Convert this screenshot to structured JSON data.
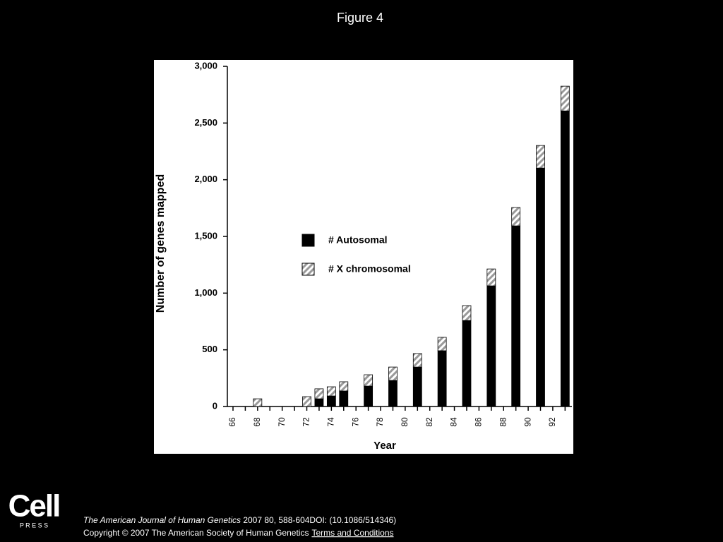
{
  "slide_title": "Figure 4",
  "chart_data": {
    "type": "stacked-bar",
    "y_label": "Number of genes mapped",
    "x_label": "Year",
    "categories": [
      "66",
      null,
      "68",
      null,
      "70",
      null,
      "72",
      null,
      "74",
      null,
      "76",
      null,
      "78",
      null,
      "80",
      null,
      "82",
      null,
      "84",
      null,
      "86",
      null,
      "88",
      null,
      "90",
      null,
      "92",
      null
    ],
    "series": [
      {
        "name": "# Autosomal",
        "color": "#000000",
        "pattern": "solid",
        "values": [
          null,
          null,
          0,
          null,
          null,
          null,
          0,
          68,
          93,
          137,
          null,
          180,
          null,
          230,
          null,
          348,
          null,
          492,
          null,
          759,
          null,
          1064,
          null,
          1593,
          null,
          2103,
          null,
          2607
        ]
      },
      {
        "name": "# X chromosomal",
        "color": "#9a9a9a",
        "pattern": "hatch",
        "values": [
          null,
          null,
          68,
          null,
          null,
          null,
          87,
          88,
          81,
          81,
          null,
          100,
          null,
          118,
          null,
          119,
          null,
          118,
          null,
          131,
          null,
          149,
          null,
          162,
          null,
          199,
          null,
          218
        ]
      }
    ],
    "ylim": [
      0,
      3000
    ],
    "yticks": [
      0,
      500,
      {
        "value": 1000,
        "label": "1,000"
      },
      {
        "value": 1500,
        "label": "1,500"
      },
      {
        "value": 2000,
        "label": "2,000"
      },
      {
        "value": 2500,
        "label": "2,500"
      },
      {
        "value": 3000,
        "label": "3,000"
      }
    ],
    "grid": false,
    "legend": "center"
  },
  "logo": {
    "word": "Cell",
    "sub": "P R E S S"
  },
  "footer": {
    "journal": "The American Journal of Human Genetics",
    "citation": " 2007 80, 588-604DOI: (10.1086/514346)",
    "copyright": "Copyright © 2007 The American Society of Human Genetics",
    "link": "Terms and Conditions"
  }
}
